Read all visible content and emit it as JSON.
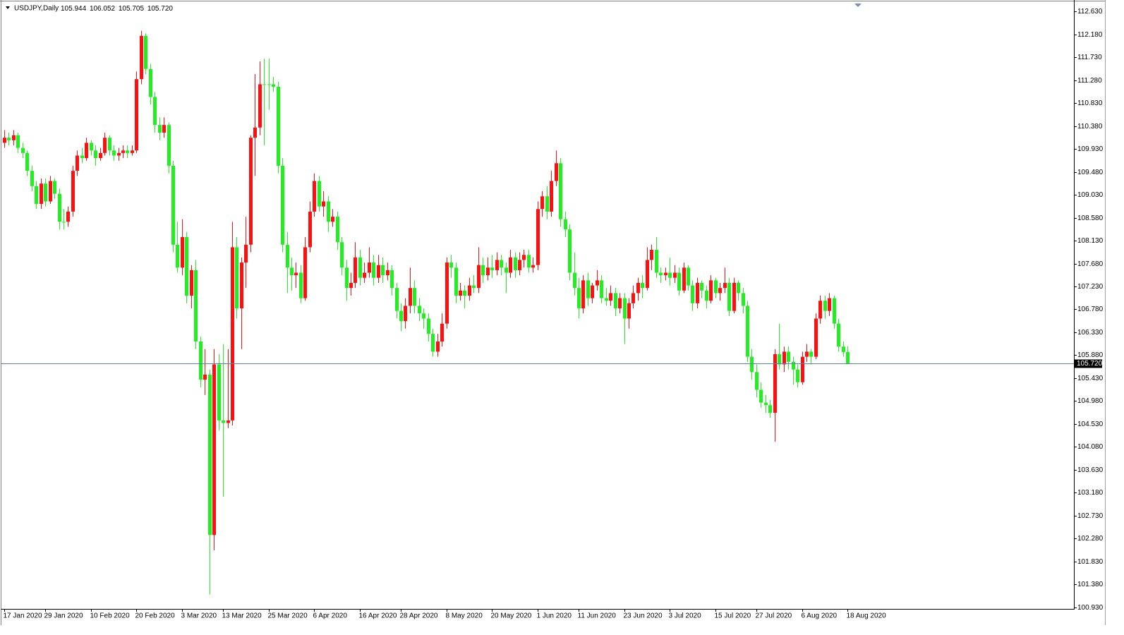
{
  "chart_data": {
    "type": "candlestick",
    "title": "USDJPY,Daily",
    "title_values": [
      "105.944",
      "106.052",
      "105.705",
      "105.720"
    ],
    "up_color": "#ff1010",
    "down_color": "#22ee22",
    "price_line_color": "#5f7f9f",
    "current_price": 105.72,
    "current_price_label": "105.720",
    "ylim": [
      100.9,
      112.84
    ],
    "yticks": [
      {
        "value": 100.93,
        "label": "100.930"
      },
      {
        "value": 101.38,
        "label": "101.380"
      },
      {
        "value": 101.83,
        "label": "101.830"
      },
      {
        "value": 102.28,
        "label": "102.280"
      },
      {
        "value": 102.73,
        "label": "102.730"
      },
      {
        "value": 103.18,
        "label": "103.180"
      },
      {
        "value": 103.63,
        "label": "103.630"
      },
      {
        "value": 104.08,
        "label": "104.080"
      },
      {
        "value": 104.53,
        "label": "104.530"
      },
      {
        "value": 104.98,
        "label": "104.980"
      },
      {
        "value": 105.43,
        "label": "105.430"
      },
      {
        "value": 105.88,
        "label": "105.880"
      },
      {
        "value": 106.33,
        "label": "106.330"
      },
      {
        "value": 106.78,
        "label": "106.780"
      },
      {
        "value": 107.23,
        "label": "107.230"
      },
      {
        "value": 107.68,
        "label": "107.680"
      },
      {
        "value": 108.13,
        "label": "108.130"
      },
      {
        "value": 108.58,
        "label": "108.580"
      },
      {
        "value": 109.03,
        "label": "109.030"
      },
      {
        "value": 109.48,
        "label": "109.480"
      },
      {
        "value": 109.93,
        "label": "109.930"
      },
      {
        "value": 110.38,
        "label": "110.380"
      },
      {
        "value": 110.83,
        "label": "110.830"
      },
      {
        "value": 111.28,
        "label": "111.280"
      },
      {
        "value": 111.73,
        "label": "111.730"
      },
      {
        "value": 112.18,
        "label": "112.180"
      },
      {
        "value": 112.63,
        "label": "112.630"
      }
    ],
    "categories": [
      "17 Jan 2020",
      null,
      null,
      null,
      null,
      null,
      null,
      null,
      null,
      "29 Jan 2020",
      null,
      null,
      null,
      null,
      null,
      null,
      null,
      null,
      null,
      "10 Feb 2020",
      null,
      null,
      null,
      null,
      null,
      null,
      null,
      null,
      null,
      "20 Feb 2020",
      null,
      null,
      null,
      null,
      null,
      null,
      null,
      null,
      null,
      "3 Mar 2020",
      null,
      null,
      null,
      null,
      null,
      null,
      null,
      null,
      "13 Mar 2020",
      null,
      null,
      null,
      null,
      null,
      null,
      null,
      null,
      null,
      "25 Mar 2020",
      null,
      null,
      null,
      null,
      null,
      null,
      null,
      null,
      null,
      "6 Apr 2020",
      null,
      null,
      null,
      null,
      null,
      null,
      null,
      null,
      null,
      "16 Apr 2020",
      null,
      null,
      null,
      null,
      null,
      null,
      null,
      null,
      "28 Apr 2020",
      null,
      null,
      null,
      null,
      null,
      null,
      null,
      null,
      null,
      "8 May 2020",
      null,
      null,
      null,
      null,
      null,
      null,
      null,
      null,
      null,
      "20 May 2020",
      null,
      null,
      null,
      null,
      null,
      null,
      null,
      null,
      null,
      "1 Jun 2020",
      null,
      null,
      null,
      null,
      null,
      null,
      null,
      null,
      "11 Jun 2020",
      null,
      null,
      null,
      null,
      null,
      null,
      null,
      null,
      null,
      "23 Jun 2020",
      null,
      null,
      null,
      null,
      null,
      null,
      null,
      null,
      null,
      "3 Jul 2020",
      null,
      null,
      null,
      null,
      null,
      null,
      null,
      null,
      null,
      "15 Jul 2020",
      null,
      null,
      null,
      null,
      null,
      null,
      null,
      null,
      "27 Jul 2020",
      null,
      null,
      null,
      null,
      null,
      null,
      null,
      null,
      null,
      "6 Aug 2020",
      null,
      null,
      null,
      null,
      null,
      null,
      null,
      null,
      null,
      "18 Aug 2020"
    ],
    "ohlc": [
      [
        110.05,
        110.3,
        109.95,
        110.15
      ],
      [
        110.15,
        110.25,
        110.0,
        110.1
      ],
      [
        110.1,
        110.3,
        110.0,
        110.2
      ],
      [
        110.2,
        110.25,
        109.85,
        109.95
      ],
      [
        109.95,
        110.05,
        109.75,
        109.85
      ],
      [
        109.85,
        109.9,
        109.4,
        109.5
      ],
      [
        109.5,
        109.6,
        109.1,
        109.2
      ],
      [
        109.2,
        109.3,
        108.75,
        108.85
      ],
      [
        108.85,
        109.35,
        108.75,
        109.25
      ],
      [
        109.25,
        109.35,
        108.8,
        108.9
      ],
      [
        108.9,
        109.4,
        108.85,
        109.3
      ],
      [
        109.3,
        109.35,
        108.95,
        109.05
      ],
      [
        109.05,
        109.15,
        108.35,
        108.5
      ],
      [
        108.5,
        108.75,
        108.35,
        108.5
      ],
      [
        108.5,
        108.8,
        108.4,
        108.7
      ],
      [
        108.7,
        109.6,
        108.6,
        109.5
      ],
      [
        109.5,
        109.9,
        109.4,
        109.8
      ],
      [
        109.8,
        109.95,
        109.65,
        109.75
      ],
      [
        109.75,
        110.15,
        109.7,
        110.05
      ],
      [
        110.05,
        110.1,
        109.8,
        109.9
      ],
      [
        109.9,
        110.0,
        109.6,
        109.75
      ],
      [
        109.75,
        109.95,
        109.7,
        109.85
      ],
      [
        109.85,
        110.25,
        109.8,
        110.15
      ],
      [
        110.15,
        110.2,
        109.8,
        109.9
      ],
      [
        109.9,
        110.0,
        109.7,
        109.8
      ],
      [
        109.8,
        109.95,
        109.7,
        109.85
      ],
      [
        109.85,
        110.0,
        109.75,
        109.9
      ],
      [
        109.9,
        110.0,
        109.75,
        109.85
      ],
      [
        109.85,
        110.0,
        109.8,
        109.9
      ],
      [
        109.9,
        111.45,
        109.85,
        111.3
      ],
      [
        111.3,
        112.25,
        111.2,
        112.15
      ],
      [
        112.15,
        112.2,
        111.4,
        111.5
      ],
      [
        111.5,
        111.6,
        110.8,
        110.95
      ],
      [
        110.95,
        111.05,
        110.25,
        110.4
      ],
      [
        110.4,
        110.55,
        110.1,
        110.25
      ],
      [
        110.25,
        110.55,
        110.15,
        110.4
      ],
      [
        110.4,
        110.45,
        109.45,
        109.6
      ],
      [
        109.6,
        109.7,
        107.9,
        108.05
      ],
      [
        108.05,
        108.5,
        107.5,
        107.6
      ],
      [
        107.6,
        108.55,
        107.45,
        108.2
      ],
      [
        108.2,
        108.3,
        106.9,
        107.05
      ],
      [
        107.05,
        107.65,
        106.8,
        107.55
      ],
      [
        107.55,
        107.75,
        106.0,
        106.15
      ],
      [
        106.15,
        106.25,
        105.25,
        105.4
      ],
      [
        105.4,
        106.0,
        105.1,
        105.5
      ],
      [
        105.5,
        105.6,
        101.18,
        102.35
      ],
      [
        102.35,
        106.0,
        102.05,
        105.7
      ],
      [
        105.7,
        105.9,
        104.4,
        104.6
      ],
      [
        104.6,
        106.1,
        103.1,
        104.55
      ],
      [
        104.55,
        106.0,
        104.45,
        104.6
      ],
      [
        104.6,
        108.5,
        104.5,
        108.0
      ],
      [
        108.0,
        108.2,
        106.6,
        106.8
      ],
      [
        106.8,
        107.8,
        106.0,
        107.7
      ],
      [
        107.7,
        108.6,
        107.2,
        108.05
      ],
      [
        108.05,
        110.2,
        107.9,
        110.15
      ],
      [
        110.15,
        111.4,
        109.4,
        110.35
      ],
      [
        110.35,
        111.65,
        110.2,
        111.2
      ],
      [
        111.2,
        111.7,
        110.0,
        111.2
      ],
      [
        111.2,
        111.7,
        110.7,
        111.2
      ],
      [
        111.2,
        111.35,
        111.05,
        111.15
      ],
      [
        111.15,
        111.25,
        109.45,
        109.6
      ],
      [
        109.6,
        109.75,
        107.9,
        108.05
      ],
      [
        108.05,
        108.3,
        107.1,
        107.6
      ],
      [
        107.6,
        107.8,
        107.15,
        107.45
      ],
      [
        107.45,
        107.7,
        107.2,
        107.5
      ],
      [
        107.5,
        107.65,
        106.9,
        107.0
      ],
      [
        107.0,
        108.2,
        106.95,
        108.0
      ],
      [
        108.0,
        108.9,
        107.9,
        108.7
      ],
      [
        108.7,
        109.45,
        108.6,
        109.3
      ],
      [
        109.3,
        109.4,
        108.7,
        108.8
      ],
      [
        108.8,
        109.1,
        108.6,
        108.9
      ],
      [
        108.9,
        109.0,
        108.3,
        108.5
      ],
      [
        108.5,
        108.75,
        108.4,
        108.6
      ],
      [
        108.6,
        108.7,
        107.95,
        108.1
      ],
      [
        108.1,
        108.2,
        107.45,
        107.6
      ],
      [
        107.6,
        107.75,
        106.95,
        107.2
      ],
      [
        107.2,
        107.5,
        107.05,
        107.3
      ],
      [
        107.3,
        108.1,
        107.2,
        107.8
      ],
      [
        107.8,
        107.95,
        107.25,
        107.4
      ],
      [
        107.4,
        107.7,
        107.3,
        107.5
      ],
      [
        107.5,
        108.0,
        107.4,
        107.7
      ],
      [
        107.7,
        107.85,
        107.25,
        107.4
      ],
      [
        107.4,
        107.85,
        107.3,
        107.65
      ],
      [
        107.65,
        107.8,
        107.3,
        107.45
      ],
      [
        107.45,
        107.7,
        107.35,
        107.55
      ],
      [
        107.55,
        107.65,
        107.05,
        107.2
      ],
      [
        107.2,
        107.3,
        106.6,
        106.75
      ],
      [
        106.75,
        106.9,
        106.35,
        106.55
      ],
      [
        106.55,
        107.0,
        106.4,
        106.85
      ],
      [
        106.85,
        107.6,
        106.7,
        107.2
      ],
      [
        107.2,
        107.35,
        106.7,
        106.85
      ],
      [
        106.85,
        107.0,
        106.55,
        106.7
      ],
      [
        106.7,
        106.8,
        106.4,
        106.6
      ],
      [
        106.6,
        106.7,
        106.15,
        106.3
      ],
      [
        106.3,
        106.4,
        105.85,
        105.95
      ],
      [
        105.95,
        106.3,
        105.85,
        106.15
      ],
      [
        106.15,
        106.7,
        106.05,
        106.5
      ],
      [
        106.5,
        107.8,
        106.4,
        107.7
      ],
      [
        107.7,
        107.85,
        107.4,
        107.6
      ],
      [
        107.6,
        107.7,
        106.9,
        107.05
      ],
      [
        107.05,
        107.3,
        106.95,
        107.15
      ],
      [
        107.15,
        107.25,
        106.8,
        107.05
      ],
      [
        107.05,
        107.4,
        106.95,
        107.25
      ],
      [
        107.25,
        107.45,
        107.1,
        107.2
      ],
      [
        107.2,
        108.0,
        107.1,
        107.65
      ],
      [
        107.65,
        107.8,
        107.3,
        107.45
      ],
      [
        107.45,
        107.8,
        107.35,
        107.6
      ],
      [
        107.6,
        107.85,
        107.4,
        107.55
      ],
      [
        107.55,
        107.9,
        107.45,
        107.75
      ],
      [
        107.75,
        107.85,
        107.45,
        107.6
      ],
      [
        107.6,
        107.7,
        107.1,
        107.5
      ],
      [
        107.5,
        107.95,
        107.4,
        107.8
      ],
      [
        107.8,
        107.9,
        107.4,
        107.55
      ],
      [
        107.55,
        107.9,
        107.45,
        107.75
      ],
      [
        107.75,
        107.95,
        107.6,
        107.85
      ],
      [
        107.85,
        107.95,
        107.5,
        107.6
      ],
      [
        107.6,
        107.8,
        107.5,
        107.65
      ],
      [
        107.65,
        108.9,
        107.55,
        108.75
      ],
      [
        108.75,
        109.1,
        108.6,
        109.0
      ],
      [
        109.0,
        109.2,
        108.55,
        108.7
      ],
      [
        108.7,
        109.5,
        108.6,
        109.3
      ],
      [
        109.3,
        109.9,
        109.2,
        109.65
      ],
      [
        109.65,
        109.75,
        108.4,
        108.55
      ],
      [
        108.55,
        108.7,
        108.2,
        108.35
      ],
      [
        108.35,
        108.45,
        107.35,
        107.5
      ],
      [
        107.5,
        107.9,
        107.05,
        107.2
      ],
      [
        107.2,
        107.4,
        106.6,
        106.8
      ],
      [
        106.8,
        107.45,
        106.7,
        107.35
      ],
      [
        107.35,
        107.5,
        106.85,
        107.0
      ],
      [
        107.0,
        107.3,
        106.9,
        107.25
      ],
      [
        107.25,
        107.55,
        107.15,
        107.35
      ],
      [
        107.35,
        107.45,
        106.9,
        107.0
      ],
      [
        107.0,
        107.2,
        106.85,
        106.95
      ],
      [
        106.95,
        107.25,
        106.85,
        107.1
      ],
      [
        107.1,
        107.2,
        106.65,
        106.8
      ],
      [
        106.8,
        107.1,
        106.7,
        107.0
      ],
      [
        107.0,
        107.1,
        106.1,
        106.6
      ],
      [
        106.6,
        107.0,
        106.4,
        106.9
      ],
      [
        106.9,
        107.25,
        106.8,
        107.1
      ],
      [
        107.1,
        107.4,
        106.95,
        107.3
      ],
      [
        107.3,
        107.45,
        107.0,
        107.2
      ],
      [
        107.2,
        108.0,
        107.15,
        107.75
      ],
      [
        107.75,
        108.05,
        107.55,
        107.95
      ],
      [
        107.95,
        108.2,
        107.4,
        107.5
      ],
      [
        107.5,
        107.6,
        107.3,
        107.45
      ],
      [
        107.45,
        107.6,
        107.35,
        107.5
      ],
      [
        107.5,
        107.8,
        107.25,
        107.4
      ],
      [
        107.4,
        107.65,
        107.3,
        107.5
      ],
      [
        107.5,
        107.6,
        107.05,
        107.15
      ],
      [
        107.15,
        107.7,
        107.1,
        107.6
      ],
      [
        107.6,
        107.65,
        107.15,
        107.25
      ],
      [
        107.25,
        107.35,
        106.75,
        106.9
      ],
      [
        106.9,
        107.4,
        106.8,
        107.3
      ],
      [
        107.3,
        107.35,
        107.0,
        107.15
      ],
      [
        107.15,
        107.25,
        106.8,
        106.95
      ],
      [
        106.95,
        107.45,
        106.9,
        107.35
      ],
      [
        107.35,
        107.4,
        107.0,
        107.1
      ],
      [
        107.1,
        107.3,
        106.95,
        107.2
      ],
      [
        107.2,
        107.6,
        107.1,
        107.3
      ],
      [
        107.3,
        107.4,
        106.65,
        106.75
      ],
      [
        106.75,
        107.4,
        106.7,
        107.3
      ],
      [
        107.3,
        107.35,
        106.95,
        107.1
      ],
      [
        107.1,
        107.2,
        106.7,
        106.85
      ],
      [
        106.85,
        106.95,
        105.75,
        105.85
      ],
      [
        105.85,
        106.0,
        105.4,
        105.55
      ],
      [
        105.55,
        105.7,
        105.05,
        105.2
      ],
      [
        105.2,
        105.35,
        104.85,
        104.95
      ],
      [
        104.95,
        105.1,
        104.75,
        104.9
      ],
      [
        104.9,
        105.0,
        104.65,
        104.75
      ],
      [
        104.75,
        106.0,
        104.18,
        105.9
      ],
      [
        105.9,
        106.5,
        105.6,
        105.7
      ],
      [
        105.7,
        106.05,
        105.55,
        105.95
      ],
      [
        105.95,
        106.05,
        105.6,
        105.75
      ],
      [
        105.75,
        105.85,
        105.3,
        105.6
      ],
      [
        105.6,
        105.7,
        105.25,
        105.35
      ],
      [
        105.35,
        105.95,
        105.3,
        105.85
      ],
      [
        105.85,
        106.1,
        105.75,
        105.95
      ],
      [
        105.95,
        106.0,
        105.7,
        105.85
      ],
      [
        105.85,
        106.7,
        105.8,
        106.6
      ],
      [
        106.6,
        107.05,
        106.5,
        106.95
      ],
      [
        106.95,
        107.05,
        106.6,
        106.75
      ],
      [
        106.75,
        107.1,
        106.65,
        107.0
      ],
      [
        107.0,
        107.05,
        106.4,
        106.5
      ],
      [
        106.5,
        106.6,
        105.95,
        106.05
      ],
      [
        106.05,
        106.15,
        105.85,
        105.94
      ],
      [
        105.944,
        106.052,
        105.705,
        105.72
      ]
    ]
  }
}
